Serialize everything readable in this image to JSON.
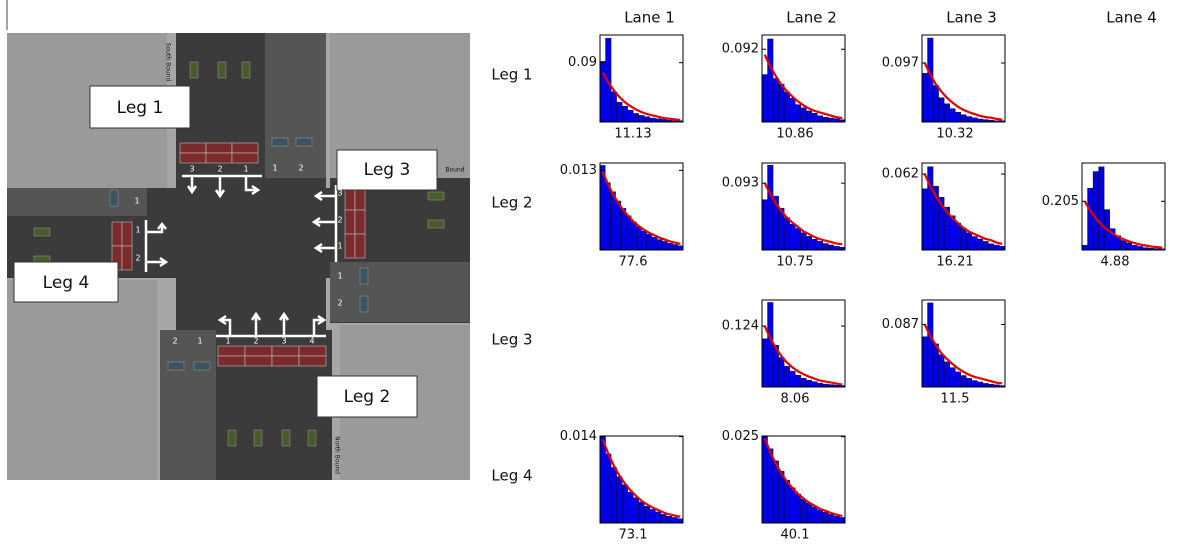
{
  "diagram": {
    "legs": [
      "Leg 1",
      "Leg 2",
      "Leg 3",
      "Leg 4"
    ],
    "streets": [
      "South Bound",
      "North Bound",
      "Bound"
    ],
    "lanes": {
      "north_in": [
        "3",
        "2",
        "1"
      ],
      "north_out": [
        "1",
        "2"
      ],
      "east_in": [
        "3",
        "2",
        "1"
      ],
      "east_out": [
        "1",
        "2"
      ],
      "west_in": [
        "1",
        "2"
      ],
      "west_out": [
        "1"
      ],
      "south_in": [
        "1",
        "2",
        "3",
        "4"
      ],
      "south_out": [
        "2",
        "1"
      ]
    }
  },
  "grid": {
    "columns": [
      "Lane 1",
      "Lane 2",
      "Lane 3",
      "Lane 4"
    ],
    "rows": [
      "Leg 1",
      "Leg 2",
      "Leg 3",
      "Leg 4"
    ]
  },
  "chart_data": [
    {
      "type": "bar",
      "color": "#0000e6",
      "fit_color": "#e60000",
      "ylim": [
        0,
        0.132
      ],
      "yticks": [
        0.09
      ],
      "xlabel": "11.13",
      "values": [
        0.092,
        0.127,
        0.046,
        0.03,
        0.024,
        0.018,
        0.013,
        0.01,
        0.008,
        0.006,
        0.005,
        0.004,
        0.003,
        0.002,
        0.002
      ],
      "fit": [
        0.075,
        0.06,
        0.048,
        0.038,
        0.03,
        0.024,
        0.019,
        0.015,
        0.012,
        0.01,
        0.008,
        0.006,
        0.005,
        0.004,
        0.003
      ]
    },
    {
      "type": "bar",
      "color": "#0000e6",
      "fit_color": "#e60000",
      "ylim": [
        0,
        0.11
      ],
      "yticks": [
        0.092
      ],
      "xlabel": "10.86",
      "values": [
        0.06,
        0.105,
        0.055,
        0.048,
        0.038,
        0.03,
        0.022,
        0.018,
        0.014,
        0.011,
        0.008,
        0.006,
        0.005,
        0.004,
        0.003
      ],
      "fit": [
        0.085,
        0.07,
        0.058,
        0.047,
        0.039,
        0.032,
        0.026,
        0.021,
        0.017,
        0.014,
        0.012,
        0.01,
        0.008,
        0.006,
        0.005
      ]
    },
    {
      "type": "bar",
      "color": "#0000e6",
      "fit_color": "#e60000",
      "ylim": [
        0,
        0.143
      ],
      "yticks": [
        0.097
      ],
      "xlabel": "10.32",
      "values": [
        0.08,
        0.138,
        0.06,
        0.04,
        0.03,
        0.022,
        0.016,
        0.012,
        0.009,
        0.007,
        0.005,
        0.004,
        0.003,
        0.002,
        0.002
      ],
      "fit": [
        0.097,
        0.078,
        0.062,
        0.05,
        0.04,
        0.032,
        0.025,
        0.02,
        0.016,
        0.013,
        0.01,
        0.008,
        0.007,
        0.005,
        0.004
      ]
    },
    {
      "type": "bar",
      "color": "#0000e6",
      "fit_color": "#e60000",
      "ylim": [
        0,
        0.0142
      ],
      "yticks": [
        0.013
      ],
      "xlabel": "77.6",
      "values": [
        0.0138,
        0.011,
        0.0095,
        0.008,
        0.0068,
        0.0056,
        0.0046,
        0.0038,
        0.0031,
        0.0026,
        0.0021,
        0.0017,
        0.0014,
        0.0011,
        0.0009,
        0.0007
      ],
      "fit": [
        0.0128,
        0.0108,
        0.0091,
        0.0077,
        0.0065,
        0.0055,
        0.0046,
        0.0039,
        0.0033,
        0.0028,
        0.0024,
        0.002,
        0.0017,
        0.0014,
        0.0012,
        0.001
      ]
    },
    {
      "type": "bar",
      "color": "#0000e6",
      "fit_color": "#e60000",
      "ylim": [
        0,
        0.121
      ],
      "yticks": [
        0.093
      ],
      "xlabel": "10.75",
      "values": [
        0.07,
        0.118,
        0.075,
        0.058,
        0.045,
        0.036,
        0.03,
        0.024,
        0.019,
        0.015,
        0.012,
        0.009,
        0.007,
        0.005,
        0.004
      ],
      "fit": [
        0.093,
        0.078,
        0.065,
        0.054,
        0.045,
        0.038,
        0.032,
        0.026,
        0.022,
        0.018,
        0.015,
        0.013,
        0.011,
        0.009,
        0.008
      ]
    },
    {
      "type": "bar",
      "color": "#0000e6",
      "fit_color": "#e60000",
      "ylim": [
        0,
        0.071
      ],
      "yticks": [
        0.062
      ],
      "xlabel": "16.21",
      "values": [
        0.05,
        0.068,
        0.052,
        0.043,
        0.035,
        0.028,
        0.022,
        0.018,
        0.014,
        0.011,
        0.009,
        0.007,
        0.005,
        0.004,
        0.003
      ],
      "fit": [
        0.062,
        0.052,
        0.044,
        0.037,
        0.031,
        0.026,
        0.022,
        0.018,
        0.015,
        0.013,
        0.011,
        0.009,
        0.008,
        0.006,
        0.005
      ]
    },
    {
      "type": "bar",
      "color": "#0000e6",
      "fit_color": "#e60000",
      "ylim": [
        0,
        0.366
      ],
      "yticks": [
        0.205
      ],
      "xlabel": "4.88",
      "values": [
        0.02,
        0.26,
        0.33,
        0.35,
        0.17,
        0.09,
        0.06,
        0.04,
        0.03,
        0.02,
        0.015,
        0.01,
        0.008,
        0.006,
        0.005
      ],
      "fit": [
        0.205,
        0.165,
        0.133,
        0.107,
        0.086,
        0.069,
        0.056,
        0.045,
        0.036,
        0.029,
        0.023,
        0.019,
        0.015,
        0.012,
        0.01
      ]
    },
    {
      "type": "bar",
      "color": "#0000e6",
      "fit_color": "#e60000",
      "ylim": [
        0,
        0.177
      ],
      "yticks": [
        0.124
      ],
      "xlabel": "8.06",
      "values": [
        0.098,
        0.172,
        0.085,
        0.06,
        0.042,
        0.032,
        0.024,
        0.018,
        0.014,
        0.011,
        0.008,
        0.006,
        0.005,
        0.004,
        0.003
      ],
      "fit": [
        0.124,
        0.099,
        0.079,
        0.063,
        0.05,
        0.04,
        0.032,
        0.026,
        0.021,
        0.017,
        0.013,
        0.011,
        0.009,
        0.007,
        0.005
      ]
    },
    {
      "type": "bar",
      "color": "#0000e6",
      "fit_color": "#e60000",
      "ylim": [
        0,
        0.121
      ],
      "yticks": [
        0.087
      ],
      "xlabel": "11.5",
      "values": [
        0.07,
        0.117,
        0.06,
        0.045,
        0.035,
        0.027,
        0.021,
        0.016,
        0.012,
        0.009,
        0.007,
        0.005,
        0.004,
        0.003,
        0.002
      ],
      "fit": [
        0.087,
        0.071,
        0.058,
        0.047,
        0.039,
        0.032,
        0.026,
        0.021,
        0.017,
        0.014,
        0.012,
        0.01,
        0.008,
        0.006,
        0.005
      ]
    },
    {
      "type": "bar",
      "color": "#0000e6",
      "fit_color": "#e60000",
      "ylim": [
        0,
        0.0141
      ],
      "yticks": [
        0.014
      ],
      "xlabel": "73.1",
      "values": [
        0.014,
        0.0112,
        0.009,
        0.0075,
        0.0062,
        0.005,
        0.0041,
        0.0034,
        0.0027,
        0.0022,
        0.0018,
        0.0014,
        0.0011,
        0.0009,
        0.0007
      ],
      "fit": [
        0.0135,
        0.0112,
        0.0093,
        0.0077,
        0.0064,
        0.0053,
        0.0044,
        0.0036,
        0.003,
        0.0025,
        0.0021,
        0.0017,
        0.0014,
        0.0012,
        0.001
      ]
    },
    {
      "type": "bar",
      "color": "#0000e6",
      "fit_color": "#e60000",
      "ylim": [
        0,
        0.0252
      ],
      "yticks": [
        0.025
      ],
      "xlabel": "40.1",
      "values": [
        0.025,
        0.0215,
        0.018,
        0.015,
        0.0124,
        0.0102,
        0.0084,
        0.0069,
        0.0057,
        0.0047,
        0.0038,
        0.0031,
        0.0025,
        0.002,
        0.0016
      ],
      "fit": [
        0.0245,
        0.0205,
        0.0172,
        0.0144,
        0.012,
        0.0101,
        0.0084,
        0.0071,
        0.0059,
        0.005,
        0.0041,
        0.0035,
        0.0029,
        0.0024,
        0.002
      ]
    }
  ]
}
